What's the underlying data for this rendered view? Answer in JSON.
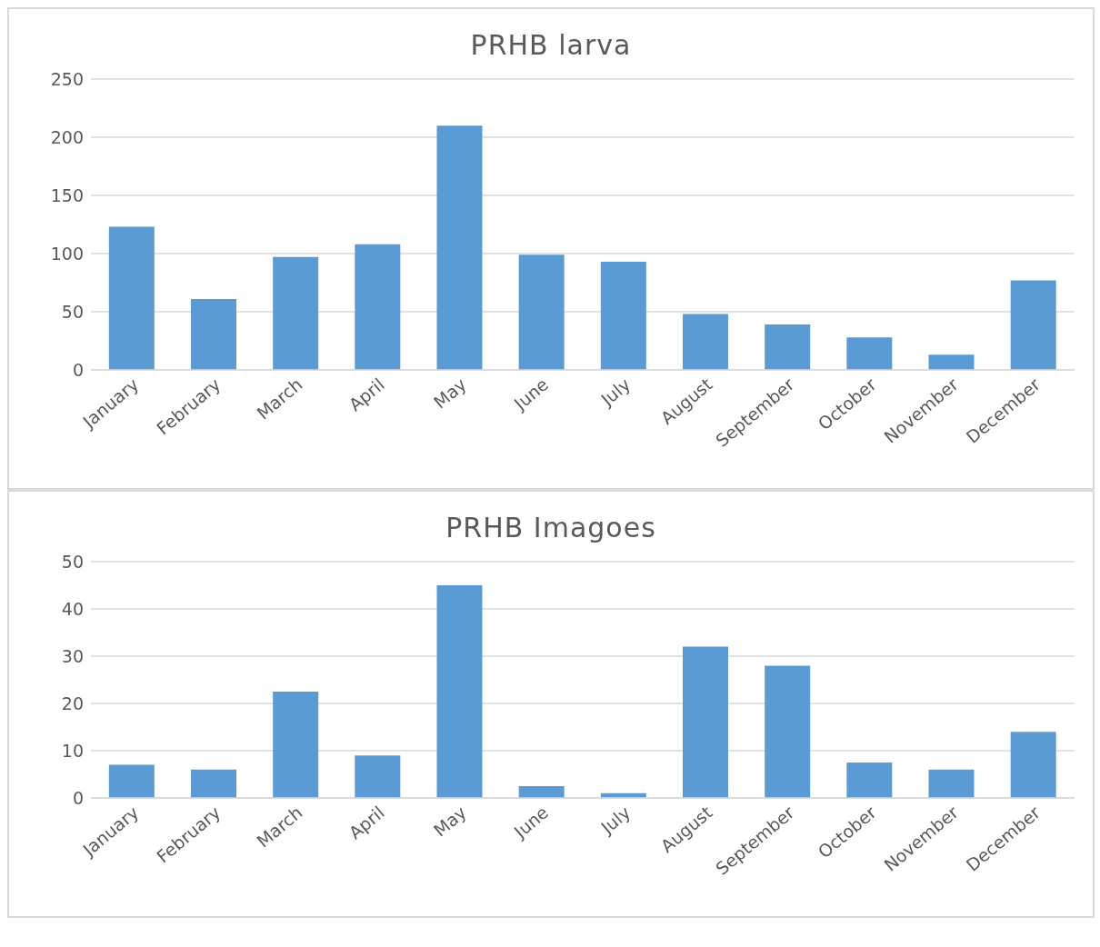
{
  "chart_data": [
    {
      "type": "bar",
      "title": "PRHB larva",
      "categories": [
        "January",
        "February",
        "March",
        "April",
        "May",
        "June",
        "July",
        "August",
        "September",
        "October",
        "November",
        "December"
      ],
      "values": [
        123,
        61,
        97,
        108,
        210,
        99,
        93,
        48,
        39,
        28,
        13,
        77
      ],
      "color": "#5b9bd5",
      "ylim": [
        0,
        250
      ],
      "yticks": [
        0,
        50,
        100,
        150,
        200,
        250
      ],
      "grid": "y"
    },
    {
      "type": "bar",
      "title": "PRHB Imagoes",
      "categories": [
        "January",
        "February",
        "March",
        "April",
        "May",
        "June",
        "July",
        "August",
        "September",
        "October",
        "November",
        "December"
      ],
      "values": [
        7,
        6,
        22.5,
        9,
        45,
        2.5,
        1,
        32,
        28,
        7.5,
        6,
        14
      ],
      "color": "#5b9bd5",
      "ylim": [
        0,
        50
      ],
      "yticks": [
        0,
        10,
        20,
        30,
        40,
        50
      ],
      "grid": "y"
    }
  ]
}
